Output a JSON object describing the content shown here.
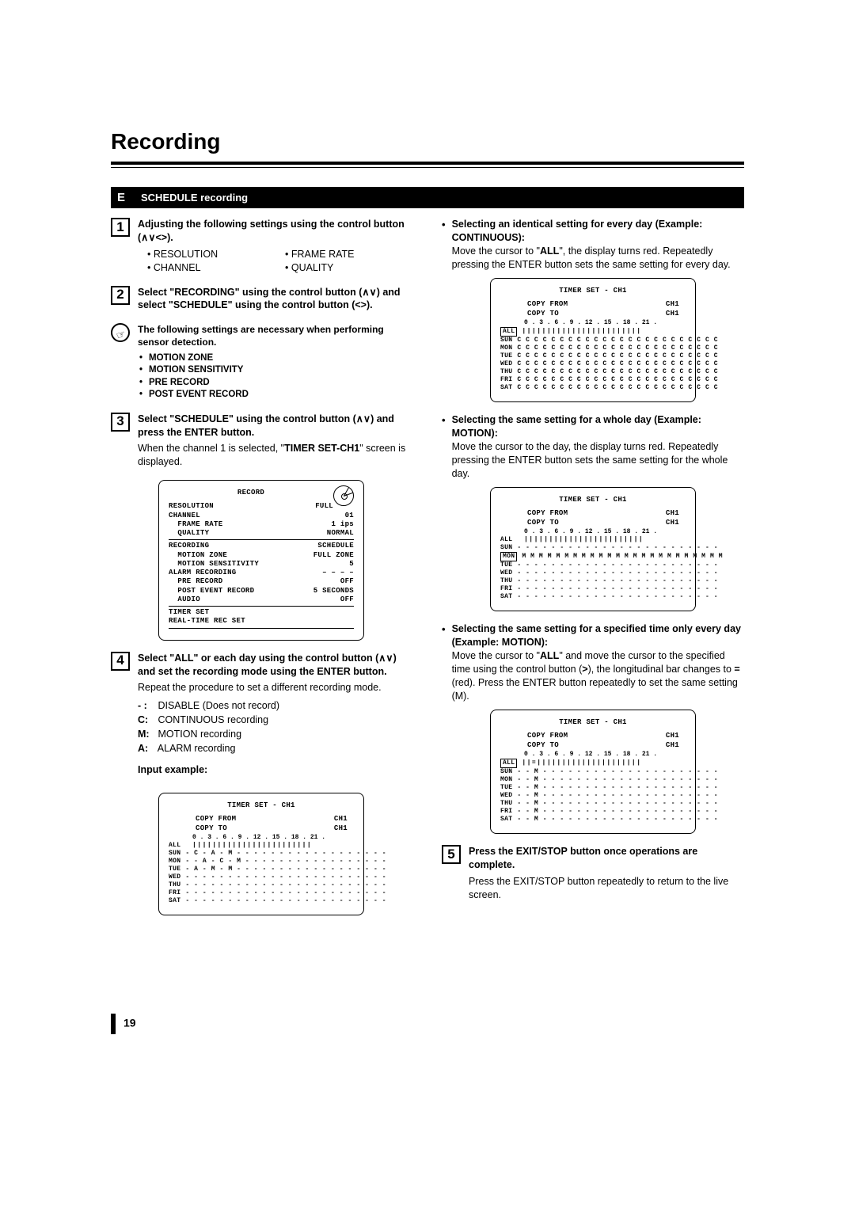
{
  "page": {
    "title": "Recording",
    "number": "19",
    "section_letter": "E",
    "section_title": "SCHEDULE recording"
  },
  "steps": {
    "s1": {
      "lead": "Adjusting the following settings using the control button (",
      "lead_end": ").",
      "items": [
        "RESOLUTION",
        "FRAME RATE",
        "CHANNEL",
        "QUALITY"
      ]
    },
    "s2": {
      "lead_a": "Select \"RECORDING\" using the control button (",
      "lead_b": ") and select \"SCHEDULE\" using the control button (",
      "lead_c": ")."
    },
    "note": {
      "lead": "The following settings are necessary when performing sensor detection.",
      "items": [
        "MOTION ZONE",
        "MOTION SENSITIVITY",
        "PRE RECORD",
        "POST EVENT RECORD"
      ]
    },
    "s3": {
      "lead_a": "Select \"SCHEDULE\" using the control button (",
      "lead_b": ") and press the ENTER button.",
      "body_a": "When the channel 1 is selected, \"",
      "body_bold": "TIMER SET-CH1",
      "body_b": "\" screen is displayed."
    },
    "s4": {
      "lead_a": "Select \"ALL\" or each day using the control button (",
      "lead_b": ") and set the recording mode using the ENTER button.",
      "body": "Repeat the procedure to set a different recording mode.",
      "defs": [
        {
          "k": "- :",
          "v": "DISABLE (Does not record)"
        },
        {
          "k": "C:",
          "v": "CONTINUOUS recording"
        },
        {
          "k": "M:",
          "v": "MOTION recording"
        },
        {
          "k": "A:",
          "v": "ALARM recording"
        }
      ],
      "input_example": "Input example:"
    },
    "s5": {
      "lead": "Press the EXIT/STOP button once operations are complete.",
      "body": "Press the EXIT/STOP button repeatedly to return to the live screen."
    }
  },
  "osd_record": {
    "title": "RECORD",
    "rows": [
      [
        "RESOLUTION",
        "FULL"
      ],
      [
        "CHANNEL",
        "01"
      ],
      [
        "  FRAME RATE",
        "1 ips"
      ],
      [
        "  QUALITY",
        "NORMAL"
      ],
      [
        "RECORDING",
        "SCHEDULE"
      ],
      [
        "  MOTION ZONE",
        "FULL ZONE"
      ],
      [
        "  MOTION SENSITIVITY",
        "5"
      ],
      [
        "ALARM RECORDING",
        "– – – –"
      ],
      [
        "  PRE RECORD",
        "OFF"
      ],
      [
        "  POST EVENT RECORD",
        "5 SECONDS"
      ],
      [
        "  AUDIO",
        "OFF"
      ],
      [
        "TIMER SET",
        ""
      ],
      [
        "REAL-TIME REC SET",
        ""
      ]
    ]
  },
  "timer_common": {
    "title": "TIMER SET - CH1",
    "copy_from_l": "COPY FROM",
    "copy_from_r": "CH1",
    "copy_to_l": "COPY TO",
    "copy_to_r": "CH1",
    "hours": "0 . 3 . 6 . 9 . 12 . 15 . 18 . 21 .",
    "ticks": "||||||||||||||||||||||||",
    "days": [
      "ALL",
      "SUN",
      "MON",
      "TUE",
      "WED",
      "THU",
      "FRI",
      "SAT"
    ]
  },
  "timer_screens": {
    "example_input": {
      "boxed": null,
      "rows": {
        "ALL": "||||||||||||||||||||||||",
        "SUN": "- C - A - M - - - - - - - - - - - - - - - - - -",
        "MON": "- - A - C - M - - - - - - - - - - - - - - - - -",
        "TUE": "- A - M - M - - - - - - - - - - - - - - - - - -",
        "WED": "- - - - - - - - - - - - - - - - - - - - - - - -",
        "THU": "- - - - - - - - - - - - - - - - - - - - - - - -",
        "FRI": "- - - - - - - - - - - - - - - - - - - - - - - -",
        "SAT": "- - - - - - - - - - - - - - - - - - - - - - - -"
      }
    },
    "continuous": {
      "boxed": "ALL",
      "rows": {
        "ALL": "||||||||||||||||||||||||",
        "SUN": "C C C C C C C C C C C C C C C C C C C C C C C C",
        "MON": "C C C C C C C C C C C C C C C C C C C C C C C C",
        "TUE": "C C C C C C C C C C C C C C C C C C C C C C C C",
        "WED": "C C C C C C C C C C C C C C C C C C C C C C C C",
        "THU": "C C C C C C C C C C C C C C C C C C C C C C C C",
        "FRI": "C C C C C C C C C C C C C C C C C C C C C C C C",
        "SAT": "C C C C C C C C C C C C C C C C C C C C C C C C"
      }
    },
    "motion_day": {
      "boxed": "MON",
      "rows": {
        "ALL": "||||||||||||||||||||||||",
        "SUN": "- - - - - - - - - - - - - - - - - - - - - - - -",
        "MON": "M M M M M M M M M M M M M M M M M M M M M M M M",
        "TUE": "- - - - - - - - - - - - - - - - - - - - - - - -",
        "WED": "- - - - - - - - - - - - - - - - - - - - - - - -",
        "THU": "- - - - - - - - - - - - - - - - - - - - - - - -",
        "FRI": "- - - - - - - - - - - - - - - - - - - - - - - -",
        "SAT": "- - - - - - - - - - - - - - - - - - - - - - - -"
      }
    },
    "motion_time": {
      "boxed": "ALL",
      "rows": {
        "ALL": "||=|||||||||||||||||||||",
        "SUN": "- - M - - - - - - - - - - - - - - - - - - - - -",
        "MON": "- - M - - - - - - - - - - - - - - - - - - - - -",
        "TUE": "- - M - - - - - - - - - - - - - - - - - - - - -",
        "WED": "- - M - - - - - - - - - - - - - - - - - - - - -",
        "THU": "- - M - - - - - - - - - - - - - - - - - - - - -",
        "FRI": "- - M - - - - - - - - - - - - - - - - - - - - -",
        "SAT": "- - M - - - - - - - - - - - - - - - - - - - - -"
      }
    }
  },
  "right": {
    "b1": {
      "h": "Selecting an identical setting for every day (Example: CONTINUOUS):",
      "p_a": "Move the cursor to \"",
      "p_bold": "ALL",
      "p_b": "\", the display turns red. Repeatedly pressing the ENTER button sets the same setting for every day."
    },
    "b2": {
      "h": "Selecting the same setting for a whole day (Example: MOTION):",
      "p": "Move the cursor to the day, the display turns red. Repeatedly pressing the ENTER button sets the same setting for the whole day."
    },
    "b3": {
      "h": "Selecting the same setting for a specified time only every day (Example: MOTION):",
      "p_a": "Move the cursor to \"",
      "p_bold1": "ALL",
      "p_b": "\" and move the cursor to the specified time using the control button (",
      "p_c": "), the longitudinal bar changes to ",
      "p_bold2": "=",
      "p_d": " (red). Press the ENTER button repeatedly to set the same setting (M)."
    }
  }
}
